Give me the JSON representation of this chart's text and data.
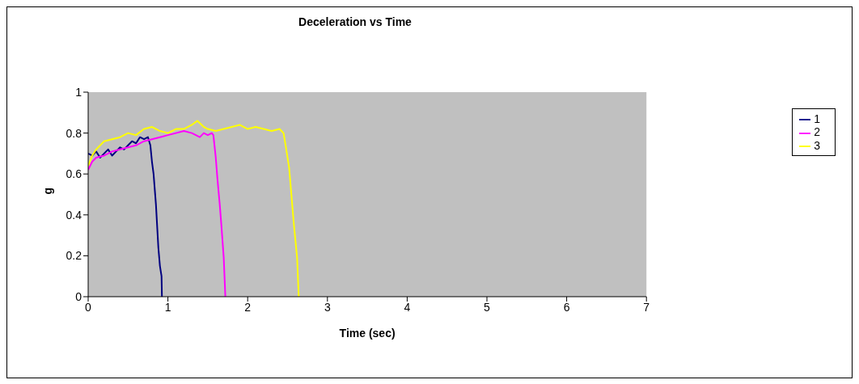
{
  "chart_data": {
    "type": "line",
    "title": "Deceleration vs Time",
    "xlabel": "Time (sec)",
    "ylabel": "g",
    "xlim": [
      0,
      7
    ],
    "xticks": [
      0,
      1,
      2,
      3,
      4,
      5,
      6,
      7
    ],
    "ylim": [
      0,
      1
    ],
    "yticks": [
      0,
      0.2,
      0.4,
      0.6,
      0.8,
      1
    ],
    "grid": false,
    "legend": "right",
    "marker": "none",
    "line_style": "solid",
    "series": [
      {
        "name": "1",
        "color": "#000080",
        "x": [
          0,
          0.05,
          0.1,
          0.15,
          0.2,
          0.25,
          0.3,
          0.35,
          0.4,
          0.45,
          0.5,
          0.55,
          0.6,
          0.65,
          0.7,
          0.75,
          0.78,
          0.8,
          0.82,
          0.85,
          0.88,
          0.9,
          0.92,
          0.925
        ],
        "values": [
          0.7,
          0.69,
          0.71,
          0.68,
          0.7,
          0.72,
          0.69,
          0.71,
          0.73,
          0.72,
          0.74,
          0.76,
          0.75,
          0.78,
          0.77,
          0.78,
          0.74,
          0.66,
          0.6,
          0.45,
          0.24,
          0.15,
          0.1,
          0
        ]
      },
      {
        "name": "2",
        "color": "#ff00ff",
        "x": [
          0,
          0.05,
          0.1,
          0.2,
          0.3,
          0.4,
          0.5,
          0.6,
          0.7,
          0.8,
          0.9,
          1.0,
          1.1,
          1.2,
          1.3,
          1.35,
          1.4,
          1.45,
          1.5,
          1.55,
          1.57,
          1.6,
          1.62,
          1.65,
          1.67,
          1.7,
          1.72
        ],
        "values": [
          0.62,
          0.66,
          0.68,
          0.69,
          0.71,
          0.72,
          0.73,
          0.74,
          0.76,
          0.77,
          0.78,
          0.79,
          0.8,
          0.81,
          0.8,
          0.79,
          0.78,
          0.8,
          0.79,
          0.8,
          0.79,
          0.68,
          0.58,
          0.45,
          0.35,
          0.19,
          0
        ]
      },
      {
        "name": "3",
        "color": "#ffff00",
        "x": [
          0,
          0.05,
          0.1,
          0.2,
          0.3,
          0.4,
          0.5,
          0.6,
          0.7,
          0.8,
          0.9,
          1.0,
          1.1,
          1.2,
          1.3,
          1.37,
          1.45,
          1.5,
          1.6,
          1.7,
          1.8,
          1.9,
          2.0,
          2.1,
          2.2,
          2.3,
          2.4,
          2.45,
          2.48,
          2.52,
          2.55,
          2.58,
          2.62,
          2.64
        ],
        "values": [
          0.64,
          0.69,
          0.72,
          0.76,
          0.77,
          0.78,
          0.8,
          0.79,
          0.82,
          0.83,
          0.81,
          0.8,
          0.82,
          0.82,
          0.84,
          0.86,
          0.83,
          0.82,
          0.81,
          0.82,
          0.83,
          0.84,
          0.82,
          0.83,
          0.82,
          0.81,
          0.82,
          0.8,
          0.73,
          0.63,
          0.49,
          0.35,
          0.19,
          0
        ]
      }
    ]
  }
}
